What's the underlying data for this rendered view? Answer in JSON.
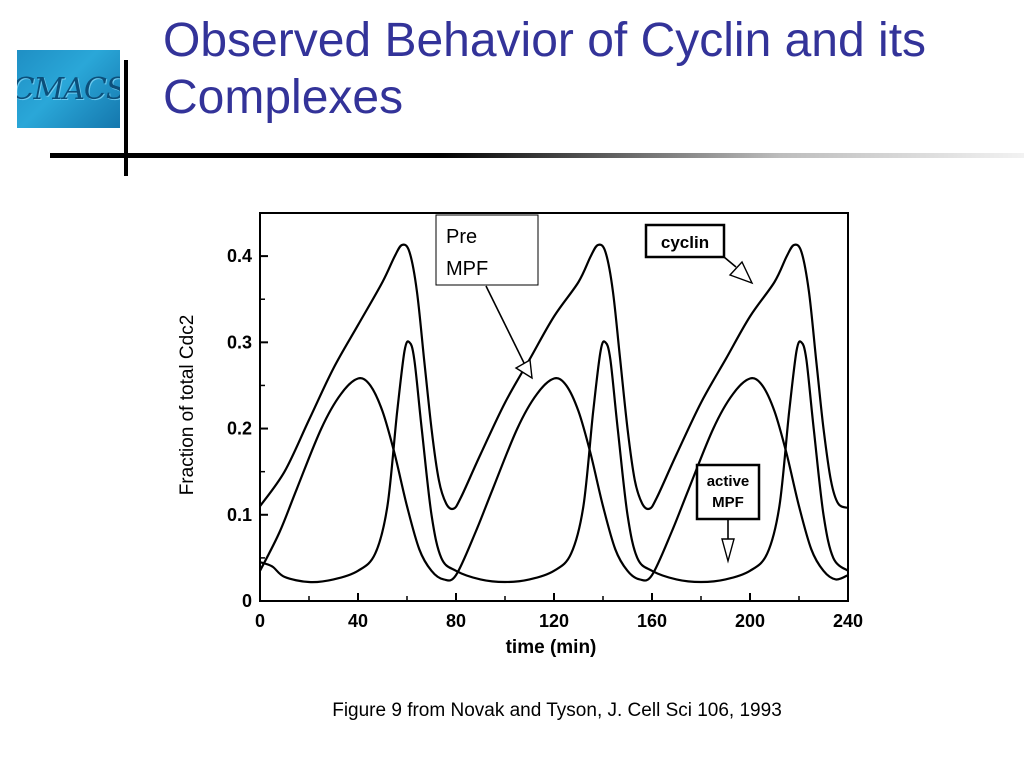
{
  "slide": {
    "title": "Observed Behavior of Cyclin and its Complexes",
    "logo_text": "CMACS",
    "caption": "Figure 9 from Novak and Tyson, J. Cell Sci 106, 1993"
  },
  "chart_data": {
    "type": "line",
    "xlabel": "time (min)",
    "ylabel": "Fraction of total Cdc2",
    "xlim": [
      0,
      240
    ],
    "ylim": [
      0,
      0.45
    ],
    "xticks": [
      0,
      40,
      80,
      120,
      160,
      200,
      240
    ],
    "yticks": [
      0,
      0.1,
      0.2,
      0.3,
      0.4
    ],
    "yticklabels": [
      "0",
      "0.1",
      "0.2",
      "0.3",
      "0.4"
    ],
    "grid": false,
    "annotations": [
      {
        "label": "Pre\nMPF"
      },
      {
        "label": "cyclin"
      },
      {
        "label": "active\nMPF"
      }
    ],
    "series": [
      {
        "name": "cyclin",
        "points": [
          [
            0,
            0.11
          ],
          [
            10,
            0.15
          ],
          [
            20,
            0.21
          ],
          [
            30,
            0.27
          ],
          [
            40,
            0.32
          ],
          [
            50,
            0.37
          ],
          [
            55,
            0.4
          ],
          [
            58,
            0.413
          ],
          [
            61,
            0.405
          ],
          [
            64,
            0.36
          ],
          [
            67,
            0.28
          ],
          [
            70,
            0.2
          ],
          [
            73,
            0.14
          ],
          [
            76,
            0.113
          ],
          [
            79,
            0.107
          ],
          [
            82,
            0.12
          ],
          [
            90,
            0.17
          ],
          [
            100,
            0.23
          ],
          [
            110,
            0.28
          ],
          [
            120,
            0.33
          ],
          [
            130,
            0.37
          ],
          [
            135,
            0.4
          ],
          [
            138,
            0.413
          ],
          [
            141,
            0.405
          ],
          [
            144,
            0.36
          ],
          [
            147,
            0.28
          ],
          [
            150,
            0.2
          ],
          [
            153,
            0.14
          ],
          [
            156,
            0.113
          ],
          [
            159,
            0.107
          ],
          [
            162,
            0.12
          ],
          [
            170,
            0.17
          ],
          [
            180,
            0.23
          ],
          [
            190,
            0.28
          ],
          [
            200,
            0.33
          ],
          [
            210,
            0.37
          ],
          [
            215,
            0.4
          ],
          [
            218,
            0.413
          ],
          [
            221,
            0.405
          ],
          [
            224,
            0.36
          ],
          [
            227,
            0.28
          ],
          [
            230,
            0.2
          ],
          [
            233,
            0.14
          ],
          [
            236,
            0.113
          ],
          [
            240,
            0.108
          ]
        ]
      },
      {
        "name": "Pre MPF",
        "points": [
          [
            0,
            0.035
          ],
          [
            8,
            0.08
          ],
          [
            15,
            0.13
          ],
          [
            25,
            0.2
          ],
          [
            33,
            0.24
          ],
          [
            40,
            0.258
          ],
          [
            45,
            0.25
          ],
          [
            50,
            0.22
          ],
          [
            55,
            0.17
          ],
          [
            60,
            0.11
          ],
          [
            65,
            0.06
          ],
          [
            70,
            0.035
          ],
          [
            75,
            0.025
          ],
          [
            80,
            0.03
          ],
          [
            88,
            0.08
          ],
          [
            95,
            0.13
          ],
          [
            105,
            0.2
          ],
          [
            113,
            0.24
          ],
          [
            120,
            0.258
          ],
          [
            125,
            0.25
          ],
          [
            130,
            0.22
          ],
          [
            135,
            0.17
          ],
          [
            140,
            0.11
          ],
          [
            145,
            0.06
          ],
          [
            150,
            0.035
          ],
          [
            155,
            0.025
          ],
          [
            160,
            0.03
          ],
          [
            168,
            0.08
          ],
          [
            175,
            0.13
          ],
          [
            185,
            0.2
          ],
          [
            193,
            0.24
          ],
          [
            200,
            0.258
          ],
          [
            205,
            0.25
          ],
          [
            210,
            0.22
          ],
          [
            215,
            0.17
          ],
          [
            220,
            0.11
          ],
          [
            225,
            0.06
          ],
          [
            230,
            0.035
          ],
          [
            235,
            0.025
          ],
          [
            240,
            0.03
          ]
        ]
      },
      {
        "name": "active MPF",
        "points": [
          [
            0,
            0.045
          ],
          [
            5,
            0.04
          ],
          [
            10,
            0.028
          ],
          [
            20,
            0.022
          ],
          [
            30,
            0.025
          ],
          [
            40,
            0.035
          ],
          [
            47,
            0.055
          ],
          [
            52,
            0.11
          ],
          [
            56,
            0.22
          ],
          [
            59,
            0.29
          ],
          [
            61,
            0.3
          ],
          [
            63,
            0.28
          ],
          [
            66,
            0.2
          ],
          [
            70,
            0.1
          ],
          [
            74,
            0.05
          ],
          [
            80,
            0.035
          ],
          [
            90,
            0.025
          ],
          [
            100,
            0.022
          ],
          [
            110,
            0.025
          ],
          [
            120,
            0.035
          ],
          [
            127,
            0.055
          ],
          [
            132,
            0.11
          ],
          [
            136,
            0.22
          ],
          [
            139,
            0.29
          ],
          [
            141,
            0.3
          ],
          [
            143,
            0.28
          ],
          [
            146,
            0.2
          ],
          [
            150,
            0.1
          ],
          [
            154,
            0.05
          ],
          [
            160,
            0.035
          ],
          [
            170,
            0.025
          ],
          [
            180,
            0.022
          ],
          [
            190,
            0.025
          ],
          [
            200,
            0.035
          ],
          [
            207,
            0.055
          ],
          [
            212,
            0.11
          ],
          [
            216,
            0.22
          ],
          [
            219,
            0.29
          ],
          [
            221,
            0.3
          ],
          [
            223,
            0.28
          ],
          [
            226,
            0.2
          ],
          [
            230,
            0.1
          ],
          [
            234,
            0.05
          ],
          [
            240,
            0.035
          ]
        ]
      }
    ]
  }
}
